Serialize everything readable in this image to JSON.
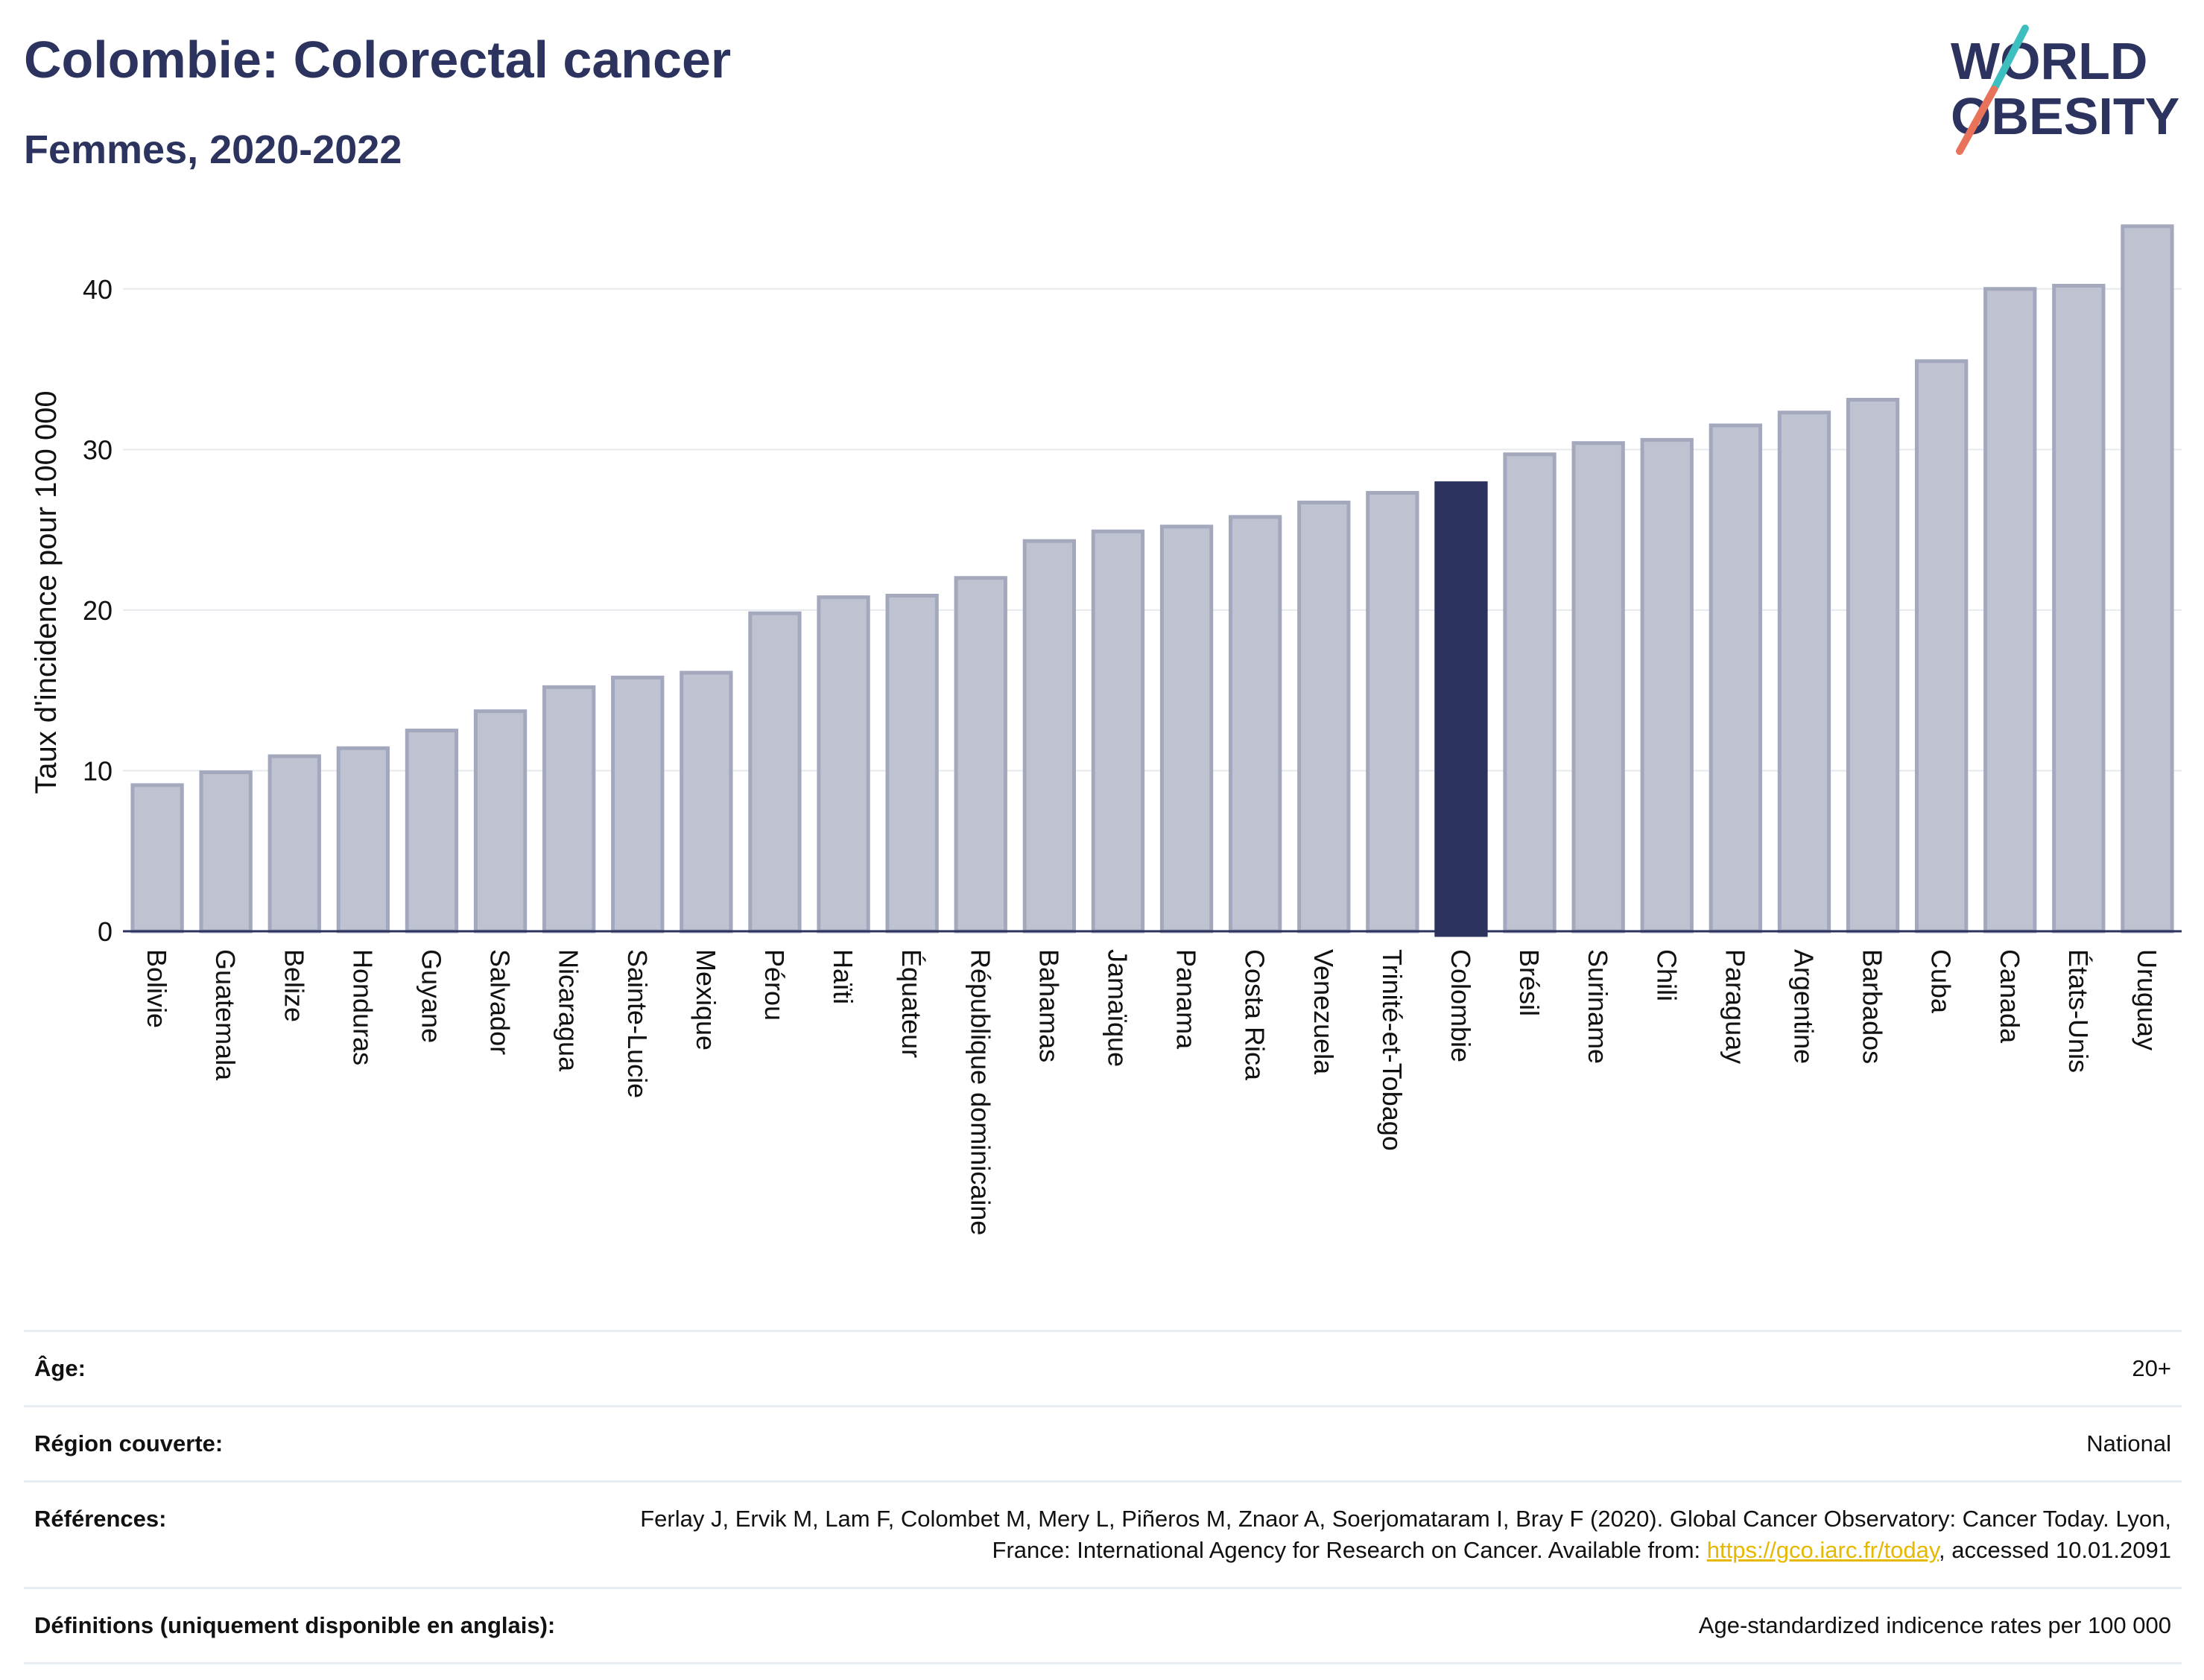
{
  "header": {
    "title": "Colombie: Colorectal cancer",
    "subtitle": "Femmes, 2020-2022"
  },
  "logo": {
    "line1": "WORLD",
    "line2": "OBESITY",
    "accent_teal": "#3dbfbf",
    "accent_coral": "#e8735a"
  },
  "colors": {
    "bar_default": "#bfc3d1",
    "bar_default_stroke": "#a3a8bd",
    "bar_highlight": "#2b335e",
    "grid": "#e6e9ee",
    "axis": "#2b335e"
  },
  "chart_data": {
    "type": "bar",
    "ylabel": "Taux d'incidence pour 100 000",
    "ylim": [
      0,
      45
    ],
    "yticks": [
      0,
      10,
      20,
      30,
      40
    ],
    "grid": true,
    "highlight": "Colombie",
    "categories": [
      "Bolivie",
      "Guatemala",
      "Belize",
      "Honduras",
      "Guyane",
      "Salvador",
      "Nicaragua",
      "Sainte-Lucie",
      "Mexique",
      "Pérou",
      "Haïti",
      "Équateur",
      "République dominicaine",
      "Bahamas",
      "Jamaïque",
      "Panama",
      "Costa Rica",
      "Venezuela",
      "Trinité-et-Tobago",
      "Colombie",
      "Brésil",
      "Suriname",
      "Chili",
      "Paraguay",
      "Argentine",
      "Barbados",
      "Cuba",
      "Canada",
      "États-Unis",
      "Uruguay"
    ],
    "values": [
      9.1,
      9.9,
      10.9,
      11.4,
      12.5,
      13.7,
      15.2,
      15.8,
      16.1,
      19.8,
      20.8,
      20.9,
      22.0,
      24.3,
      24.9,
      25.2,
      25.8,
      26.7,
      27.3,
      27.9,
      29.7,
      30.4,
      30.6,
      31.5,
      32.3,
      33.1,
      35.5,
      40.0,
      40.2,
      43.9
    ]
  },
  "info": {
    "age_label": "Âge:",
    "age_value": "20+",
    "region_label": "Région couverte:",
    "region_value": "National",
    "references_label": "Références:",
    "references_text_1": "Ferlay J, Ervik M, Lam F, Colombet M, Mery L, Piñeros M, Znaor A, Soerjomataram I, Bray F (2020). Global Cancer Observatory: Cancer Today. Lyon, France: International Agency for Research on Cancer. Available from: ",
    "references_link": "https://gco.iarc.fr/today",
    "references_text_2": ", accessed 10.01.2091",
    "definitions_label": "Définitions (uniquement disponible en anglais):",
    "definitions_value": "Age-standardized indicence rates per 100 000"
  }
}
